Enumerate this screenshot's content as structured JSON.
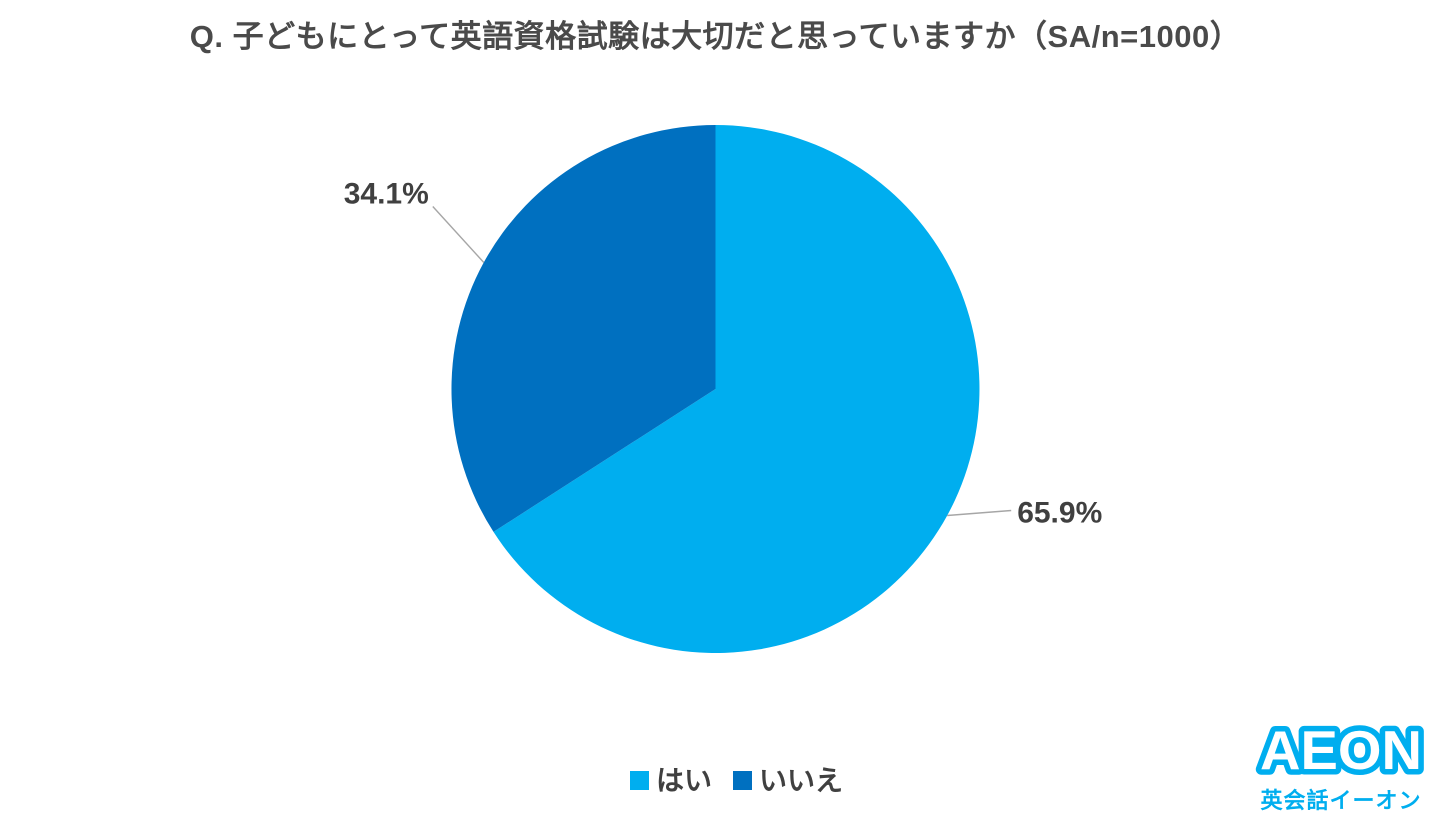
{
  "title": {
    "text": "Q. 子どもにとって英語資格試験は大切だと思っていますか（SA/n=1000）",
    "color": "#4a4a4a"
  },
  "chart_data": {
    "type": "pie",
    "title": "Q. 子どもにとって英語資格試験は大切だと思っていますか（SA/n=1000）",
    "question_type": "SA",
    "sample_size": 1000,
    "categories": [
      "はい",
      "いいえ"
    ],
    "slugs": [
      "hai",
      "iie"
    ],
    "values": [
      65.9,
      34.1
    ],
    "labels": [
      "65.9%",
      "34.1%"
    ],
    "colors": [
      "#00AEEF",
      "#0070C0"
    ],
    "start_angle_deg": 0,
    "direction": "clockwise",
    "legend_position": "bottom",
    "leader_line_color": "#a6a6a6",
    "label_color": "#404040"
  },
  "legend": {
    "items": [
      {
        "label": "はい",
        "color": "#00AEEF"
      },
      {
        "label": "いいえ",
        "color": "#0070C0"
      }
    ]
  },
  "logo": {
    "brand": "AEON",
    "subtitle": "英会話イーオン",
    "color": "#00AEEF"
  }
}
